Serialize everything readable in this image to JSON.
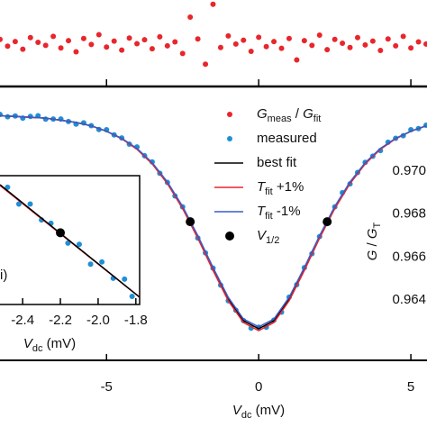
{
  "chart_data": [
    {
      "type": "scatter",
      "xlim": [
        -8.5,
        5.53
      ],
      "ylim": [
        0.999,
        1.001
      ],
      "xticks": [
        -5,
        0,
        5
      ],
      "series": [
        {
          "name": [
            {
              "text": "G",
              "italic": true
            },
            {
              "text": "meas",
              "sub": true
            },
            {
              "text": " / "
            },
            {
              "text": "G",
              "italic": true
            },
            {
              "text": "fit",
              "sub": true
            }
          ],
          "type": "scatter",
          "color": "#e8262b",
          "x": [
            -8.5,
            -8.25,
            -8,
            -7.75,
            -7.5,
            -7.25,
            -7,
            -6.75,
            -6.5,
            -6.25,
            -6,
            -5.75,
            -5.5,
            -5.25,
            -5,
            -4.75,
            -4.5,
            -4.25,
            -4,
            -3.75,
            -3.5,
            -3.25,
            -3,
            -2.75,
            -2.5,
            -2.25,
            -2,
            -1.75,
            -1.5,
            -1.25,
            -1,
            -0.75,
            -0.5,
            -0.25,
            0,
            0.25,
            0.5,
            0.75,
            1,
            1.25,
            1.5,
            1.75,
            2,
            2.25,
            2.5,
            2.75,
            3,
            3.25,
            3.5,
            3.75,
            4,
            4.25,
            4.5,
            4.75,
            5,
            5.25,
            5.5
          ],
          "values": [
            1.00008,
            0.99992,
            1.00003,
            0.99985,
            1.00012,
            1.00001,
            0.99994,
            1.00015,
            0.99988,
            1.00005,
            0.99979,
            1.0001,
            0.99996,
            1.00019,
            0.9999,
            1.00004,
            0.99983,
            1.00011,
            0.99998,
            1.00007,
            0.99986,
            1.00014,
            0.99993,
            1.00002,
            0.99975,
            1.0006,
            1.00009,
            0.9995,
            1.0009,
            0.99989,
            1.00016,
            0.99997,
            1.00006,
            0.9998,
            1.00013,
            0.99991,
            1.00003,
            0.99987,
            1.0001,
            0.9996,
            1.00005,
            0.99994,
            1.00018,
            0.99984,
            1.00008,
            0.99999,
            0.99989,
            1.00012,
            0.99995,
            1.00004,
            0.99982,
            1.00009,
            0.99993,
            1.00015,
            0.99988,
            1.00002,
            0.99997
          ]
        }
      ]
    },
    {
      "type": "line",
      "xlim": [
        -8.5,
        5.53
      ],
      "ylim": [
        0.9612,
        0.9739
      ],
      "xticks": [
        -5,
        0,
        5
      ],
      "yticks": [
        0.964,
        0.966,
        0.968,
        {
          "value": 0.97,
          "label": "0.970"
        }
      ],
      "xlabel": [
        {
          "text": "V",
          "italic": true
        },
        {
          "text": "dc",
          "sub": true
        },
        {
          "text": " (mV)"
        }
      ],
      "ylabel": [
        {
          "text": "G",
          "italic": true
        },
        {
          "text": " / "
        },
        {
          "text": "G",
          "italic": true
        },
        {
          "text": "T",
          "sub": true
        }
      ],
      "series": [
        {
          "name": [
            {
              "text": "measured"
            }
          ],
          "type": "scatter",
          "color": "#1f8fd6",
          "x": [
            -8.5,
            -8.25,
            -8,
            -7.75,
            -7.5,
            -7.25,
            -7,
            -6.75,
            -6.5,
            -6.25,
            -6,
            -5.75,
            -5.5,
            -5.25,
            -5,
            -4.75,
            -4.5,
            -4.25,
            -4,
            -3.75,
            -3.5,
            -3.25,
            -3,
            -2.75,
            -2.5,
            -2.25,
            -2,
            -1.75,
            -1.5,
            -1.25,
            -1,
            -0.75,
            -0.5,
            -0.25,
            0,
            0.25,
            0.5,
            0.75,
            1,
            1.25,
            1.5,
            1.75,
            2,
            2.25,
            2.5,
            2.75,
            3,
            3.25,
            3.5,
            3.75,
            4,
            4.25,
            4.5,
            4.75,
            5,
            5.25,
            5.5
          ],
          "values": [
            0.97264,
            0.97253,
            0.97257,
            0.97247,
            0.97255,
            0.97258,
            0.97242,
            0.97243,
            0.97243,
            0.97231,
            0.97219,
            0.97225,
            0.97212,
            0.97194,
            0.97193,
            0.97169,
            0.97155,
            0.97126,
            0.97113,
            0.97072,
            0.97043,
            0.9699,
            0.96948,
            0.96885,
            0.96834,
            0.96773,
            0.96689,
            0.9662,
            0.96549,
            0.9647,
            0.96397,
            0.96353,
            0.96305,
            0.9627,
            0.96274,
            0.96274,
            0.96307,
            0.96344,
            0.96414,
            0.96472,
            0.96551,
            0.96616,
            0.96696,
            0.96758,
            0.96834,
            0.969,
            0.96941,
            0.96994,
            0.97041,
            0.9707,
            0.97096,
            0.97135,
            0.97153,
            0.97165,
            0.97193,
            0.97198,
            0.97214
          ]
        },
        {
          "name": [
            {
              "text": "best fit"
            }
          ],
          "type": "line",
          "color": "#000000",
          "x": [
            -8.5,
            -8,
            -7,
            -6,
            -5.5,
            -5,
            -4.5,
            -4,
            -3.5,
            -3,
            -2.5,
            -2,
            -1.5,
            -1,
            -0.5,
            0,
            0.5,
            1,
            1.5,
            2,
            2.5,
            3,
            3.5,
            4,
            4.5,
            5,
            5.5
          ],
          "values": [
            0.97258,
            0.97255,
            0.97247,
            0.97227,
            0.97211,
            0.97186,
            0.97152,
            0.97104,
            0.97037,
            0.96946,
            0.96831,
            0.96694,
            0.96545,
            0.96405,
            0.96304,
            0.96267,
            0.96304,
            0.96405,
            0.96545,
            0.96694,
            0.96831,
            0.96946,
            0.97037,
            0.97104,
            0.97152,
            0.97186,
            0.97211
          ]
        },
        {
          "name": [
            {
              "text": "T",
              "italic": true
            },
            {
              "text": "fit",
              "sub": true
            },
            {
              "text": " +1%"
            }
          ],
          "type": "line",
          "color": "#e8262b",
          "x": [
            -8.5,
            -8,
            -7,
            -6,
            -5.5,
            -5,
            -4.5,
            -4,
            -3.5,
            -3,
            -2.5,
            -2,
            -1.5,
            -1,
            -0.5,
            0,
            0.5,
            1,
            1.5,
            2,
            2.5,
            3,
            3.5,
            4,
            4.5,
            5,
            5.5
          ],
          "values": [
            0.97258,
            0.97255,
            0.97247,
            0.97227,
            0.97211,
            0.97186,
            0.97151,
            0.97102,
            0.97034,
            0.96942,
            0.96826,
            0.96688,
            0.96538,
            0.96397,
            0.96296,
            0.96258,
            0.96296,
            0.96397,
            0.96538,
            0.96688,
            0.96826,
            0.96942,
            0.97034,
            0.97102,
            0.97151,
            0.97186,
            0.97211
          ]
        },
        {
          "name": [
            {
              "text": "T",
              "italic": true
            },
            {
              "text": "fit",
              "sub": true
            },
            {
              "text": " -1%"
            }
          ],
          "type": "line",
          "color": "#3c5cc8",
          "x": [
            -8.5,
            -8,
            -7,
            -6,
            -5.5,
            -5,
            -4.5,
            -4,
            -3.5,
            -3,
            -2.5,
            -2,
            -1.5,
            -1,
            -0.5,
            0,
            0.5,
            1,
            1.5,
            2,
            2.5,
            3,
            3.5,
            4,
            4.5,
            5,
            5.5
          ],
          "values": [
            0.97258,
            0.97255,
            0.97247,
            0.97227,
            0.97211,
            0.97186,
            0.97153,
            0.97106,
            0.9704,
            0.9695,
            0.96836,
            0.967,
            0.96552,
            0.96413,
            0.96312,
            0.96276,
            0.96312,
            0.96413,
            0.96552,
            0.967,
            0.96836,
            0.9695,
            0.9704,
            0.97106,
            0.97153,
            0.97186,
            0.97211
          ]
        },
        {
          "name": [
            {
              "text": "V",
              "italic": true
            },
            {
              "text": "1/2",
              "sub": true
            }
          ],
          "type": "marker",
          "color": "#000000",
          "x": [
            -2.25,
            2.25
          ],
          "values": [
            0.96765,
            0.96765
          ]
        }
      ]
    },
    {
      "type": "line",
      "xlim": [
        -2.52,
        -1.78
      ],
      "ylim": [
        0.966,
        0.969
      ],
      "xticks": [
        -2.4,
        -2.2,
        {
          "value": -2,
          "label": "-2.0"
        },
        -1.8
      ],
      "xlabel": [
        {
          "text": "V",
          "italic": true
        },
        {
          "text": "dc",
          "sub": true
        },
        {
          "text": " (mV)"
        }
      ],
      "annotation": "i)",
      "series": [
        {
          "type": "scatter",
          "color": "#1f8fd6",
          "x": [
            -2.48,
            -2.42,
            -2.36,
            -2.3,
            -2.25,
            -2.16,
            -2.1,
            -2.04,
            -1.98,
            -1.92,
            -1.86,
            -1.82
          ],
          "values": [
            0.96873,
            0.96834,
            0.96834,
            0.96797,
            0.96789,
            0.96743,
            0.9674,
            0.96694,
            0.96699,
            0.96661,
            0.96659,
            0.96619
          ]
        },
        {
          "type": "line",
          "color": "#e8262b",
          "x": [
            -2.52,
            -1.78
          ],
          "values": [
            0.96877,
            0.96617
          ]
        },
        {
          "type": "line",
          "color": "#000000",
          "x": [
            -2.52,
            -1.78
          ],
          "values": [
            0.96879,
            0.96617
          ]
        },
        {
          "type": "marker",
          "color": "#000000",
          "x": [
            -2.2
          ],
          "values": [
            0.96767
          ]
        }
      ]
    }
  ]
}
